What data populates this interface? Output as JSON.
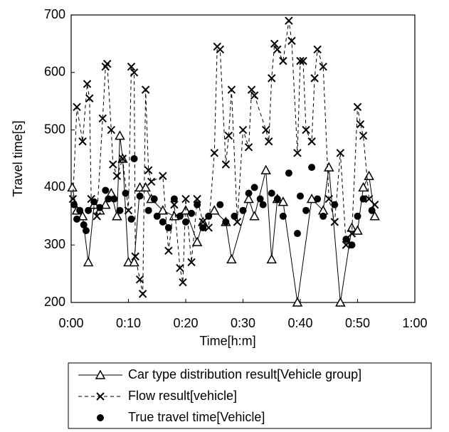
{
  "chart_data": {
    "type": "line",
    "xlabel": "Time[h:m]",
    "ylabel": "Travel time[s]",
    "xlim": [
      0,
      60
    ],
    "xticks": [
      {
        "value": 0,
        "label": "0:00"
      },
      {
        "value": 10,
        "label": "0:10"
      },
      {
        "value": 20,
        "label": "0:20"
      },
      {
        "value": 30,
        "label": "0:30"
      },
      {
        "value": 40,
        "label": "0:40"
      },
      {
        "value": 50,
        "label": "0:50"
      },
      {
        "value": 60,
        "label": "1:00"
      }
    ],
    "ylim": [
      200,
      700
    ],
    "yticks": [
      200,
      300,
      400,
      500,
      600,
      700
    ],
    "series": [
      {
        "name": "Car type distribution result[Vehicle group]",
        "color": "#000000",
        "marker": "triangle",
        "linestyle": "solid",
        "x": [
          0.2,
          1,
          2,
          3,
          4,
          5,
          6,
          7,
          8,
          8.5,
          9,
          10,
          11,
          12,
          13,
          14,
          16,
          18,
          20,
          22,
          23,
          25,
          27,
          28,
          31,
          32,
          34,
          35,
          36,
          37,
          39.5,
          42,
          44,
          45,
          47,
          49,
          50,
          51,
          52,
          53
        ],
        "values": [
          400,
          360,
          350,
          270,
          370,
          360,
          370,
          390,
          350,
          490,
          450,
          270,
          270,
          400,
          400,
          380,
          360,
          350,
          360,
          305,
          340,
          360,
          340,
          275,
          380,
          350,
          430,
          275,
          380,
          375,
          200,
          380,
          360,
          435,
          200,
          330,
          325,
          400,
          420,
          350
        ]
      },
      {
        "name": "Flow result[vehicle]",
        "color": "#000000",
        "marker": "cross",
        "linestyle": "dashed",
        "x": [
          0.3,
          1,
          2,
          2.8,
          3.2,
          3.5,
          4.5,
          5.5,
          6,
          6.3,
          7,
          7.3,
          8,
          9,
          10,
          10.5,
          11,
          11.2,
          12,
          12.5,
          13,
          13.5,
          14,
          16,
          17,
          18,
          19,
          19.5,
          20,
          21,
          22,
          23,
          24,
          25,
          25.5,
          26,
          27,
          27.5,
          28,
          29,
          30,
          31,
          31.5,
          32,
          34,
          34.5,
          35,
          35.5,
          36,
          37,
          38,
          38.5,
          39.5,
          40,
          40.5,
          41,
          42,
          42.5,
          43,
          44,
          45,
          46,
          47,
          48,
          49,
          50,
          50.5,
          51,
          52,
          53
        ],
        "values": [
          380,
          540,
          480,
          580,
          555,
          380,
          350,
          520,
          610,
          615,
          500,
          440,
          420,
          450,
          360,
          610,
          600,
          280,
          240,
          215,
          570,
          430,
          410,
          420,
          290,
          370,
          260,
          235,
          380,
          270,
          380,
          340,
          330,
          460,
          645,
          640,
          440,
          490,
          570,
          340,
          500,
          470,
          570,
          560,
          500,
          480,
          590,
          650,
          640,
          620,
          690,
          655,
          460,
          620,
          620,
          500,
          480,
          590,
          640,
          610,
          380,
          340,
          460,
          300,
          320,
          540,
          510,
          490,
          380,
          370
        ]
      },
      {
        "name": "True travel time[Vehicle]",
        "color": "#000000",
        "marker": "dot",
        "linestyle": "none",
        "x": [
          0.5,
          1,
          1.5,
          2.2,
          2.6,
          3,
          4,
          5,
          6,
          6.5,
          7.5,
          8.5,
          9.5,
          10.5,
          11,
          12,
          13.5,
          14.5,
          15,
          16,
          17,
          18,
          19,
          20,
          21,
          22,
          23,
          24,
          26,
          27,
          28.5,
          30,
          31,
          32,
          33,
          33.5,
          35,
          36,
          37,
          38,
          39.5,
          40,
          41,
          42,
          43,
          44,
          46,
          48,
          49,
          50,
          51,
          52.5
        ],
        "values": [
          370,
          345,
          360,
          335,
          325,
          360,
          375,
          365,
          395,
          380,
          380,
          360,
          390,
          345,
          450,
          385,
          360,
          380,
          350,
          340,
          330,
          380,
          350,
          340,
          355,
          370,
          330,
          350,
          370,
          340,
          350,
          360,
          390,
          400,
          380,
          370,
          390,
          380,
          350,
          425,
          320,
          385,
          360,
          435,
          380,
          350,
          370,
          310,
          300,
          350,
          380,
          360
        ]
      }
    ]
  }
}
